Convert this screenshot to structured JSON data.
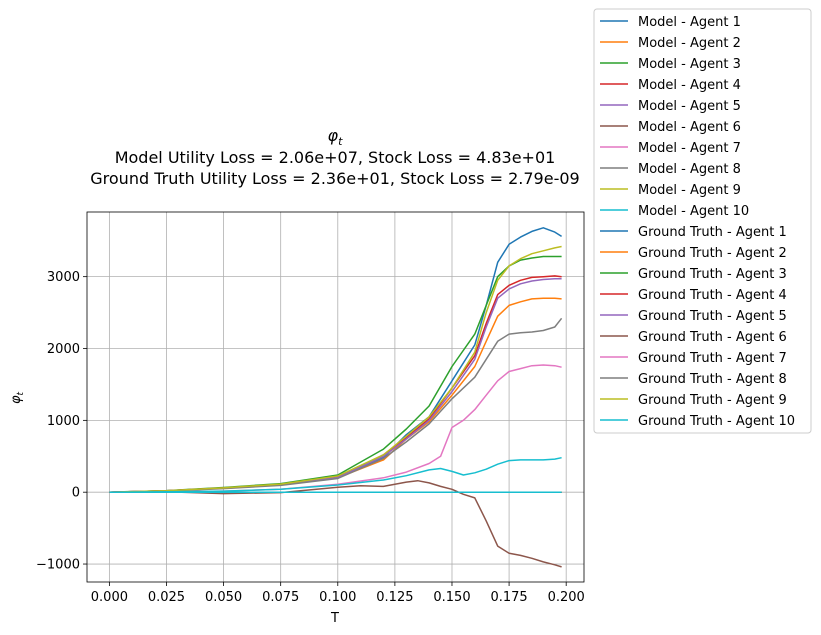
{
  "chart_data": {
    "type": "line",
    "title": "φ_t",
    "title_parts": {
      "main": "φ",
      "sub": "t"
    },
    "subtitle_lines": [
      "Model Utility Loss = 2.06e+07, Stock Loss = 4.83e+01",
      "Ground Truth Utility Loss = 2.36e+01, Stock Loss = 2.79e-09"
    ],
    "xlabel": "T",
    "ylabel": "φ_t",
    "ylabel_parts": {
      "main": "φ",
      "sub": "t"
    },
    "xlim": [
      -0.0098,
      0.2078
    ],
    "ylim": [
      -1250,
      3900
    ],
    "xticks": [
      0.0,
      0.025,
      0.05,
      0.075,
      0.1,
      0.125,
      0.15,
      0.175,
      0.2
    ],
    "xtick_labels": [
      "0.000",
      "0.025",
      "0.050",
      "0.075",
      "0.100",
      "0.125",
      "0.150",
      "0.175",
      "0.200"
    ],
    "yticks": [
      -1000,
      0,
      1000,
      2000,
      3000
    ],
    "ytick_labels": [
      "−1000",
      "0",
      "1000",
      "2000",
      "3000"
    ],
    "grid": true,
    "legend_position": "outside-top-right",
    "series": [
      {
        "name": "Model - Agent 1",
        "color": "#1f77b4",
        "group": "model",
        "x": [
          0,
          0.025,
          0.05,
          0.075,
          0.1,
          0.12,
          0.13,
          0.14,
          0.15,
          0.16,
          0.165,
          0.17,
          0.175,
          0.18,
          0.185,
          0.19,
          0.195,
          0.198
        ],
        "y": [
          0,
          20,
          60,
          110,
          220,
          480,
          800,
          1050,
          1550,
          2050,
          2600,
          3200,
          3450,
          3550,
          3630,
          3680,
          3620,
          3560
        ]
      },
      {
        "name": "Model - Agent 2",
        "color": "#ff7f0e",
        "group": "model",
        "x": [
          0,
          0.025,
          0.05,
          0.075,
          0.1,
          0.12,
          0.13,
          0.14,
          0.15,
          0.16,
          0.165,
          0.17,
          0.175,
          0.18,
          0.185,
          0.19,
          0.195,
          0.198
        ],
        "y": [
          0,
          18,
          55,
          100,
          200,
          450,
          740,
          980,
          1350,
          1750,
          2100,
          2450,
          2600,
          2650,
          2690,
          2700,
          2700,
          2690
        ]
      },
      {
        "name": "Model - Agent 3",
        "color": "#2ca02c",
        "group": "model",
        "x": [
          0,
          0.025,
          0.05,
          0.075,
          0.1,
          0.12,
          0.13,
          0.14,
          0.15,
          0.16,
          0.165,
          0.17,
          0.175,
          0.18,
          0.185,
          0.19,
          0.195,
          0.198
        ],
        "y": [
          0,
          22,
          65,
          120,
          240,
          600,
          880,
          1200,
          1750,
          2200,
          2600,
          3000,
          3150,
          3230,
          3260,
          3280,
          3280,
          3280
        ]
      },
      {
        "name": "Model - Agent 4",
        "color": "#d62728",
        "group": "model",
        "x": [
          0,
          0.025,
          0.05,
          0.075,
          0.1,
          0.12,
          0.13,
          0.14,
          0.15,
          0.16,
          0.165,
          0.17,
          0.175,
          0.18,
          0.185,
          0.19,
          0.195,
          0.198
        ],
        "y": [
          0,
          19,
          58,
          105,
          210,
          520,
          760,
          1020,
          1450,
          1900,
          2350,
          2750,
          2880,
          2950,
          2990,
          3000,
          3010,
          3000
        ]
      },
      {
        "name": "Model - Agent 5",
        "color": "#9467bd",
        "group": "model",
        "x": [
          0,
          0.025,
          0.05,
          0.075,
          0.1,
          0.12,
          0.13,
          0.14,
          0.15,
          0.16,
          0.165,
          0.17,
          0.175,
          0.18,
          0.185,
          0.19,
          0.195,
          0.198
        ],
        "y": [
          0,
          18,
          56,
          102,
          205,
          500,
          740,
          1000,
          1400,
          1850,
          2300,
          2700,
          2830,
          2900,
          2940,
          2960,
          2970,
          2970
        ]
      },
      {
        "name": "Model - Agent 6",
        "color": "#8c564b",
        "group": "model",
        "x": [
          0,
          0.025,
          0.05,
          0.075,
          0.1,
          0.11,
          0.12,
          0.13,
          0.135,
          0.14,
          0.145,
          0.15,
          0.155,
          0.16,
          0.165,
          0.17,
          0.175,
          0.18,
          0.185,
          0.19,
          0.195,
          0.198
        ],
        "y": [
          0,
          5,
          -20,
          -5,
          70,
          90,
          80,
          140,
          160,
          130,
          80,
          40,
          -30,
          -80,
          -400,
          -750,
          -850,
          -880,
          -920,
          -970,
          -1010,
          -1040
        ]
      },
      {
        "name": "Model - Agent 7",
        "color": "#e377c2",
        "group": "model",
        "x": [
          0,
          0.025,
          0.05,
          0.075,
          0.1,
          0.12,
          0.13,
          0.14,
          0.145,
          0.15,
          0.155,
          0.16,
          0.165,
          0.17,
          0.175,
          0.18,
          0.185,
          0.19,
          0.195,
          0.198
        ],
        "y": [
          0,
          5,
          15,
          40,
          110,
          200,
          280,
          400,
          500,
          900,
          1000,
          1150,
          1350,
          1550,
          1680,
          1720,
          1760,
          1770,
          1760,
          1740
        ]
      },
      {
        "name": "Model - Agent 8",
        "color": "#7f7f7f",
        "group": "model",
        "x": [
          0,
          0.025,
          0.05,
          0.075,
          0.1,
          0.12,
          0.13,
          0.14,
          0.15,
          0.16,
          0.165,
          0.17,
          0.175,
          0.18,
          0.185,
          0.19,
          0.195,
          0.198
        ],
        "y": [
          0,
          16,
          50,
          95,
          190,
          470,
          700,
          950,
          1300,
          1600,
          1850,
          2100,
          2200,
          2220,
          2230,
          2250,
          2300,
          2420
        ]
      },
      {
        "name": "Model - Agent 9",
        "color": "#bcbd22",
        "group": "model",
        "x": [
          0,
          0.025,
          0.05,
          0.075,
          0.1,
          0.12,
          0.13,
          0.14,
          0.15,
          0.16,
          0.165,
          0.17,
          0.175,
          0.18,
          0.185,
          0.19,
          0.195,
          0.198
        ],
        "y": [
          0,
          20,
          60,
          112,
          225,
          520,
          780,
          1050,
          1450,
          1950,
          2500,
          2950,
          3150,
          3250,
          3320,
          3360,
          3400,
          3420
        ]
      },
      {
        "name": "Model - Agent 10",
        "color": "#17becf",
        "group": "model",
        "x": [
          0,
          0.025,
          0.05,
          0.075,
          0.1,
          0.12,
          0.13,
          0.14,
          0.145,
          0.15,
          0.155,
          0.16,
          0.165,
          0.17,
          0.175,
          0.18,
          0.185,
          0.19,
          0.195,
          0.198
        ],
        "y": [
          0,
          5,
          15,
          40,
          100,
          170,
          230,
          310,
          330,
          290,
          240,
          270,
          320,
          390,
          440,
          450,
          450,
          450,
          460,
          480
        ]
      },
      {
        "name": "Ground Truth - Agent 1",
        "color": "#1f77b4",
        "group": "truth",
        "x": [
          0,
          0.198
        ],
        "y": [
          0,
          0
        ]
      },
      {
        "name": "Ground Truth - Agent 2",
        "color": "#ff7f0e",
        "group": "truth",
        "x": [
          0,
          0.198
        ],
        "y": [
          0,
          0
        ]
      },
      {
        "name": "Ground Truth - Agent 3",
        "color": "#2ca02c",
        "group": "truth",
        "x": [
          0,
          0.198
        ],
        "y": [
          0,
          0
        ]
      },
      {
        "name": "Ground Truth - Agent 4",
        "color": "#d62728",
        "group": "truth",
        "x": [
          0,
          0.198
        ],
        "y": [
          0,
          0
        ]
      },
      {
        "name": "Ground Truth - Agent 5",
        "color": "#9467bd",
        "group": "truth",
        "x": [
          0,
          0.198
        ],
        "y": [
          0,
          0
        ]
      },
      {
        "name": "Ground Truth - Agent 6",
        "color": "#8c564b",
        "group": "truth",
        "x": [
          0,
          0.198
        ],
        "y": [
          0,
          0
        ]
      },
      {
        "name": "Ground Truth - Agent 7",
        "color": "#e377c2",
        "group": "truth",
        "x": [
          0,
          0.198
        ],
        "y": [
          0,
          0
        ]
      },
      {
        "name": "Ground Truth - Agent 8",
        "color": "#7f7f7f",
        "group": "truth",
        "x": [
          0,
          0.198
        ],
        "y": [
          0,
          0
        ]
      },
      {
        "name": "Ground Truth - Agent 9",
        "color": "#bcbd22",
        "group": "truth",
        "x": [
          0,
          0.198
        ],
        "y": [
          0,
          0
        ]
      },
      {
        "name": "Ground Truth - Agent 10",
        "color": "#17becf",
        "group": "truth",
        "x": [
          0,
          0.198
        ],
        "y": [
          0,
          0
        ]
      }
    ]
  }
}
